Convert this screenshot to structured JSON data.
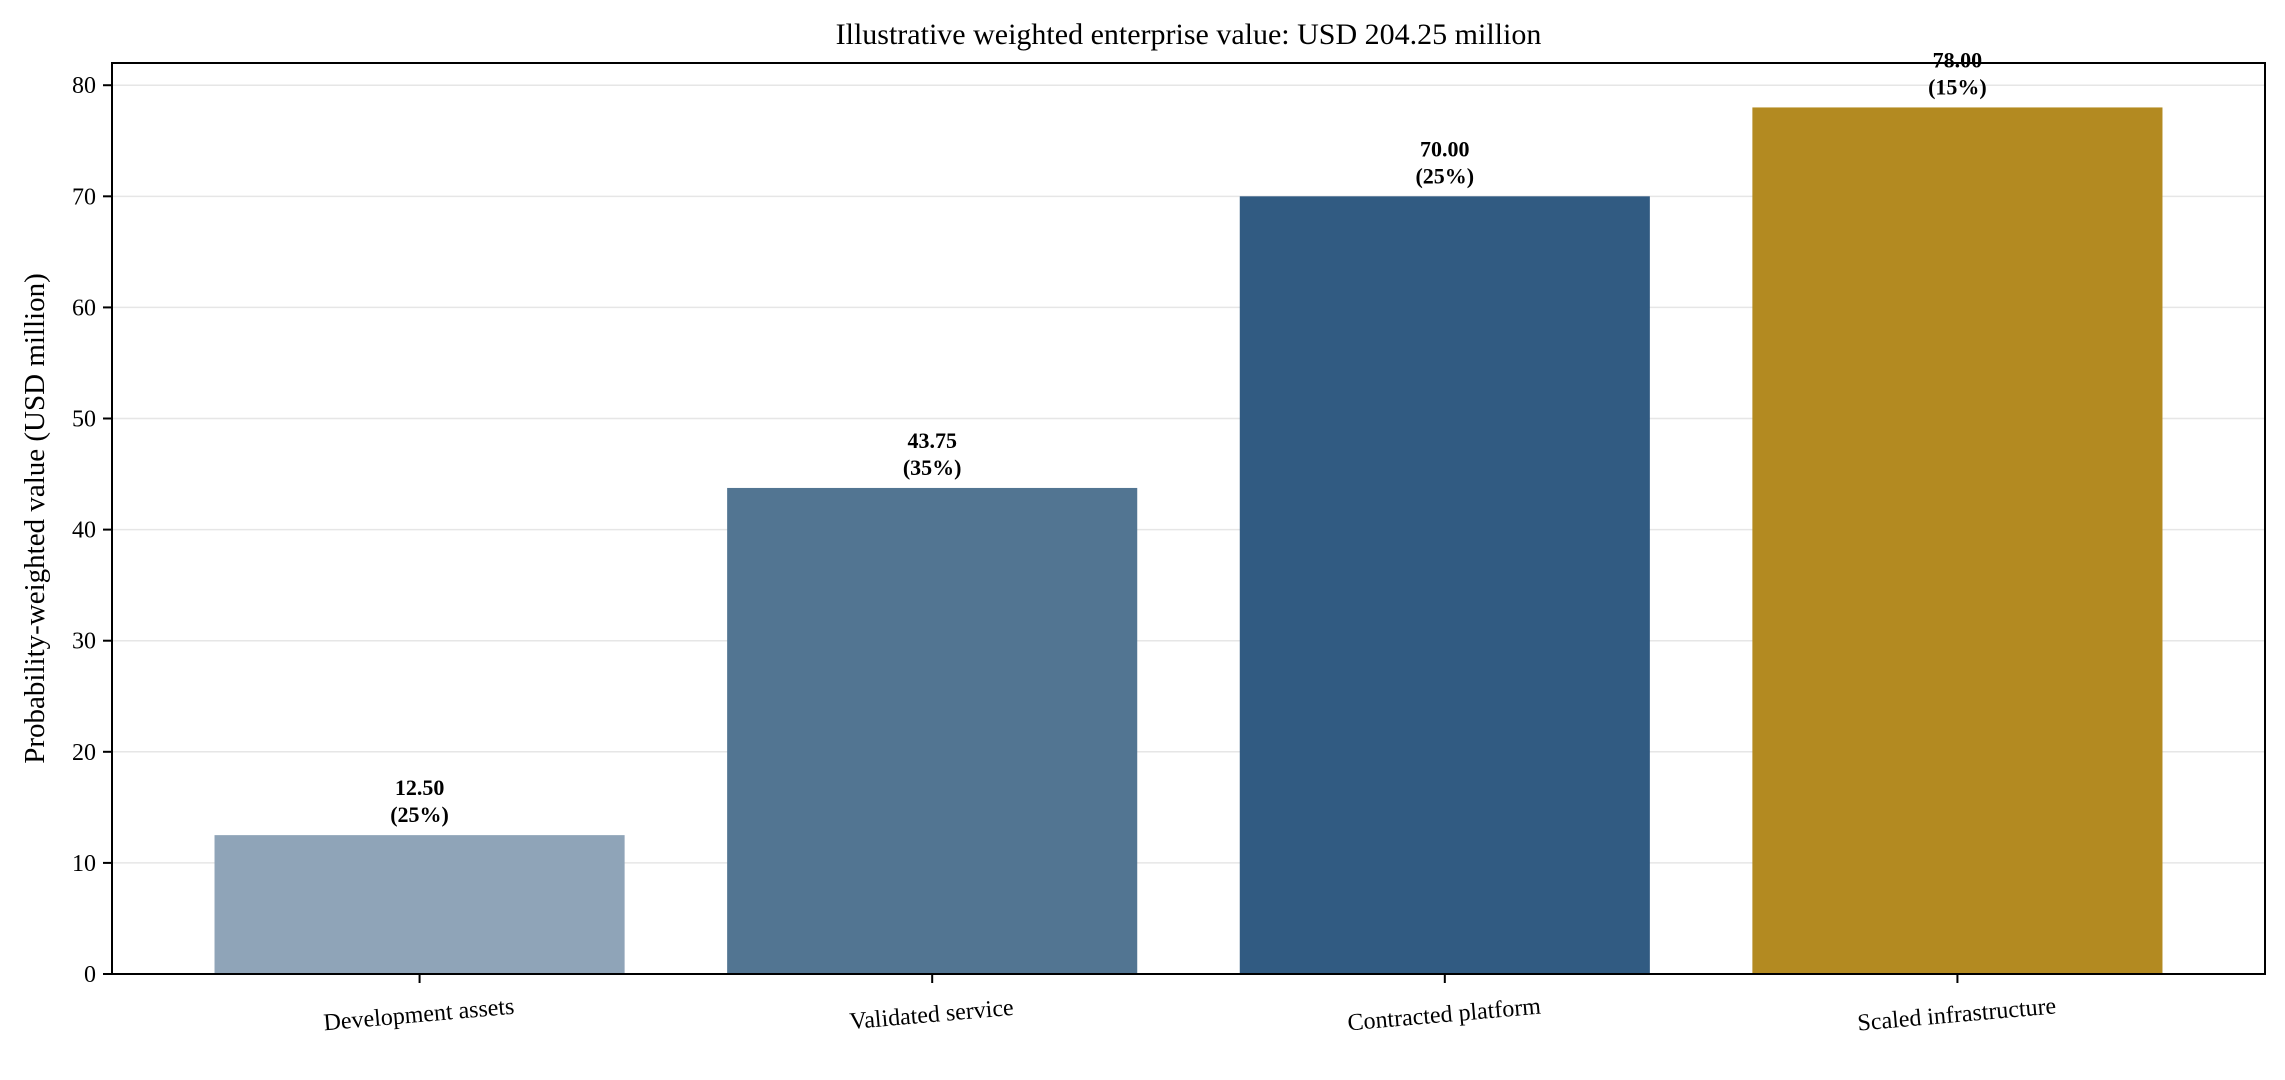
{
  "chart_data": {
    "type": "bar",
    "title": "Illustrative weighted enterprise value: USD 204.25 million",
    "xlabel": "",
    "ylabel": "Probability-weighted value (USD million)",
    "ylim": [
      0,
      82
    ],
    "yticks": [
      0,
      10,
      20,
      30,
      40,
      50,
      60,
      70,
      80
    ],
    "grid": "y-axis, light",
    "legend": "none",
    "categories": [
      "Development assets",
      "Validated service",
      "Contracted platform",
      "Scaled infrastructure"
    ],
    "values": [
      12.5,
      43.75,
      70.0,
      78.0
    ],
    "value_labels": [
      "12.50",
      "43.75",
      "70.00",
      "78.00"
    ],
    "probability_labels": [
      "(25%)",
      "(35%)",
      "(25%)",
      "(15%)"
    ],
    "colors": [
      "#8fa4b8",
      "#527592",
      "#315b82",
      "#b38a21"
    ]
  }
}
